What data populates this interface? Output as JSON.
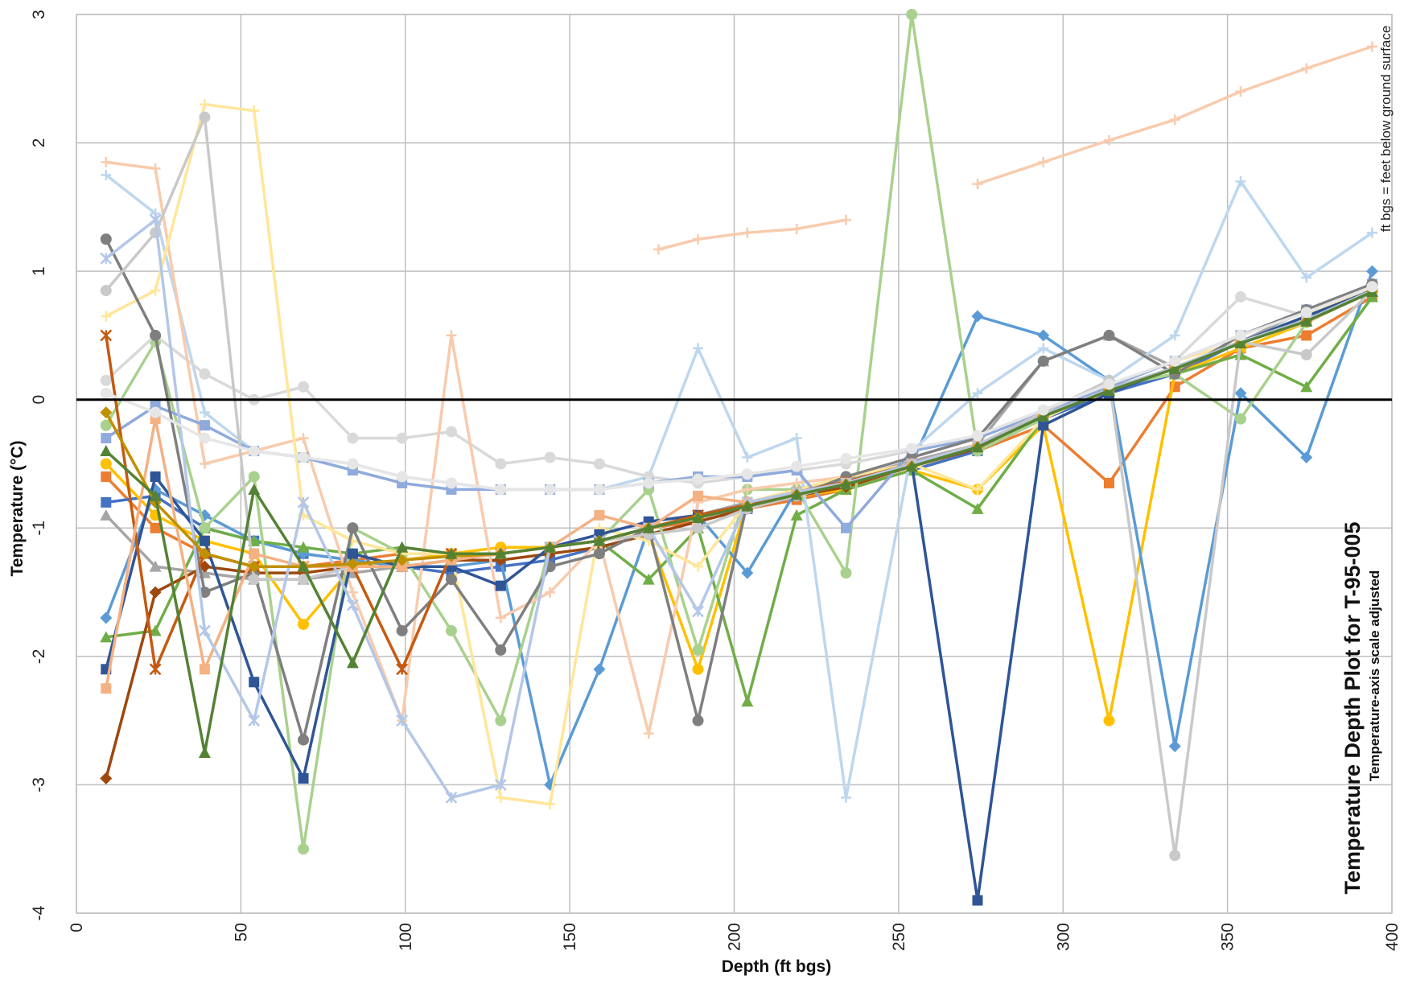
{
  "chart_data": {
    "type": "line",
    "title": "Temperature Depth Plot for T-95-005",
    "subtitle": "Temperature-axis scale adjusted",
    "note": "ft bgs = feet below ground surface",
    "xlabel": "Depth (ft bgs)",
    "ylabel": "Temperature (°C)",
    "xlim": [
      0,
      400
    ],
    "ylim": [
      -4,
      3
    ],
    "xticks": [
      0,
      50,
      100,
      150,
      200,
      250,
      300,
      350,
      400
    ],
    "yticks": [
      -4,
      -3,
      -2,
      -1,
      0,
      1,
      2,
      3
    ],
    "xtick_labels": [
      "0",
      "50",
      "100",
      "150",
      "200",
      "250",
      "300",
      "350",
      "400"
    ],
    "ytick_labels": [
      "-4",
      "-3",
      "-2",
      "-1",
      "0",
      "1",
      "2",
      "3"
    ],
    "grid": true,
    "reference_line_y": 0,
    "depths": [
      9,
      24,
      39,
      54,
      69,
      84,
      99,
      114,
      129,
      144,
      159,
      174,
      189,
      204,
      219,
      234,
      254,
      274,
      294,
      314,
      334,
      354,
      374,
      394
    ],
    "series": [
      {
        "color": "#ED7D31",
        "marker": "square",
        "values": [
          -0.6,
          -1.0,
          -1.2,
          -1.3,
          -1.3,
          -1.25,
          -1.2,
          -1.2,
          -1.2,
          -1.15,
          -1.1,
          -1.0,
          -0.95,
          -0.85,
          -0.78,
          -0.7,
          -0.55,
          -0.4,
          -0.2,
          -0.65,
          0.1,
          0.4,
          0.5,
          0.8
        ]
      },
      {
        "color": "#4472C4",
        "marker": "square",
        "values": [
          -0.8,
          -0.75,
          -1.0,
          -1.1,
          -1.2,
          -1.25,
          -1.3,
          -1.35,
          -1.3,
          -1.25,
          -1.15,
          -1.05,
          -0.95,
          -0.85,
          -0.75,
          -0.7,
          -0.55,
          -0.4,
          -0.15,
          0.05,
          0.2,
          0.45,
          0.65,
          0.85
        ]
      },
      {
        "color": "#A5A5A5",
        "marker": "triangle",
        "values": [
          -0.9,
          -1.3,
          -1.35,
          -1.4,
          -1.4,
          -1.35,
          -1.3,
          -1.25,
          -1.2,
          -1.15,
          -1.1,
          -1.0,
          -0.9,
          -0.8,
          -0.72,
          -0.62,
          -0.48,
          -0.35,
          0.3,
          0.5,
          0.25,
          0.45,
          0.7,
          0.9
        ]
      },
      {
        "color": "#FFC000",
        "marker": "circle",
        "values": [
          -0.5,
          -0.9,
          -1.1,
          -1.2,
          -1.75,
          -1.3,
          -1.25,
          -1.2,
          -1.15,
          -1.15,
          -1.1,
          -1.05,
          -2.1,
          -0.8,
          -0.75,
          -0.7,
          -0.55,
          -0.7,
          -0.2,
          -2.5,
          0.2,
          0.4,
          0.6,
          0.85
        ]
      },
      {
        "color": "#5B9BD5",
        "marker": "diamond",
        "values": [
          -1.7,
          -0.7,
          -0.9,
          -1.1,
          -1.2,
          -1.25,
          -1.3,
          -1.3,
          -1.25,
          -3.0,
          -2.1,
          -1.0,
          -0.9,
          -1.35,
          -0.7,
          -0.6,
          -0.5,
          0.65,
          0.5,
          0.15,
          -2.7,
          0.05,
          -0.45,
          1.0
        ]
      },
      {
        "color": "#70AD47",
        "marker": "triangle",
        "values": [
          -1.85,
          -1.8,
          -1.0,
          -1.1,
          -1.15,
          -1.2,
          -1.15,
          -1.2,
          -1.2,
          -1.15,
          -1.1,
          -1.4,
          -1.0,
          -2.35,
          -0.9,
          -0.7,
          -0.55,
          -0.85,
          -0.15,
          0.1,
          0.2,
          0.35,
          0.1,
          0.8
        ]
      },
      {
        "color": "#9E480E",
        "marker": "diamond",
        "values": [
          -2.95,
          -1.5,
          -1.3,
          -1.35,
          -1.35,
          -1.3,
          -1.3,
          -1.25,
          -1.25,
          -1.2,
          -1.15,
          -1.05,
          -0.95,
          -0.85,
          -0.75,
          -0.68,
          -0.52,
          -0.38,
          -0.12,
          0.08,
          0.25,
          0.45,
          0.62,
          0.85
        ]
      },
      {
        "color": "#A9D18E",
        "marker": "circle",
        "values": [
          -0.2,
          0.45,
          -1.0,
          -0.6,
          -3.5,
          -1.0,
          -1.2,
          -1.8,
          -2.5,
          -1.15,
          -1.1,
          -0.7,
          -1.95,
          -0.7,
          -0.7,
          -1.35,
          3.0,
          -0.4,
          -0.15,
          0.1,
          0.2,
          -0.15,
          0.6,
          0.85
        ]
      },
      {
        "color": "#BDD7EE",
        "marker": "plus",
        "values": [
          1.75,
          1.45,
          -0.1,
          -0.4,
          -0.45,
          -0.5,
          -0.6,
          -0.65,
          -0.7,
          -0.7,
          -0.7,
          -0.6,
          0.4,
          -0.45,
          -0.3,
          -3.1,
          -0.4,
          0.05,
          0.4,
          0.15,
          0.5,
          1.7,
          0.95,
          1.3
        ]
      },
      {
        "color": "#D9D9D9",
        "marker": "circle",
        "values": [
          0.15,
          0.5,
          0.2,
          0.0,
          0.1,
          -0.3,
          -0.3,
          -0.25,
          -0.5,
          -0.45,
          -0.5,
          -0.6,
          -0.65,
          -0.6,
          -0.55,
          -0.5,
          -0.4,
          -0.3,
          -0.1,
          0.1,
          0.3,
          0.8,
          0.65,
          0.9
        ]
      },
      {
        "color": "#F8CBAD",
        "marker": "plus",
        "values": [
          1.85,
          1.8,
          -0.5,
          -0.4,
          -0.3,
          -1.5,
          -2.5,
          0.5,
          -1.7,
          -1.5,
          -1.1,
          -2.6,
          -0.8,
          -0.7,
          -0.65,
          -0.6,
          -0.5,
          -0.35,
          -0.1,
          0.05,
          0.25,
          0.45,
          0.6,
          0.85
        ]
      },
      {
        "color": "#FFE699",
        "marker": "plus",
        "values": [
          0.65,
          0.85,
          2.3,
          2.25,
          -0.9,
          -1.1,
          -1.2,
          -1.2,
          -3.1,
          -3.15,
          -1.0,
          -1.1,
          -1.3,
          -0.8,
          -0.7,
          -0.6,
          -0.5,
          -0.7,
          -0.15,
          0.1,
          0.3,
          0.45,
          0.65,
          0.88
        ]
      },
      {
        "color": "#8FAADC",
        "marker": "square",
        "values": [
          -0.3,
          -0.05,
          -0.2,
          -0.4,
          -0.45,
          -0.55,
          -0.65,
          -0.7,
          -0.7,
          -0.7,
          -0.7,
          -0.65,
          -0.6,
          -0.6,
          -0.55,
          -1.0,
          -0.4,
          -0.3,
          -0.1,
          0.1,
          0.3,
          0.5,
          0.7,
          0.9
        ]
      },
      {
        "color": "#7F7F7F",
        "marker": "circle",
        "values": [
          1.25,
          0.5,
          -1.5,
          -1.35,
          -2.65,
          -1.0,
          -1.8,
          -1.4,
          -1.95,
          -1.3,
          -1.2,
          -1.0,
          -2.5,
          -0.8,
          -0.75,
          -0.6,
          -0.45,
          -0.3,
          0.3,
          0.5,
          0.2,
          0.5,
          0.7,
          0.9
        ]
      },
      {
        "color": "#C9C9C9",
        "marker": "circle",
        "values": [
          0.85,
          1.3,
          2.2,
          -1.4,
          -1.4,
          -1.3,
          -1.3,
          -1.25,
          -1.2,
          -1.15,
          -1.1,
          -1.05,
          -1.0,
          -0.85,
          -0.75,
          -0.65,
          -0.5,
          -0.35,
          -0.1,
          0.15,
          -3.55,
          0.45,
          0.35,
          0.85
        ]
      },
      {
        "color": "#2F5597",
        "marker": "square",
        "values": [
          -2.1,
          -0.6,
          -1.1,
          -2.2,
          -2.95,
          -1.2,
          -1.3,
          -1.3,
          -1.45,
          -1.15,
          -1.05,
          -0.95,
          -0.9,
          -0.82,
          -0.72,
          -0.65,
          -0.5,
          -3.9,
          -0.2,
          0.05,
          0.25,
          0.45,
          0.65,
          0.85
        ]
      },
      {
        "color": "#C55A11",
        "marker": "star",
        "values": [
          0.5,
          -2.1,
          -1.2,
          -1.3,
          -1.3,
          -1.3,
          -2.1,
          -1.2,
          -1.2,
          -1.15,
          -1.1,
          -1.0,
          -0.9,
          -0.82,
          -0.72,
          -0.64,
          -0.5,
          -0.36,
          -0.12,
          0.08,
          0.25,
          0.45,
          0.62,
          0.85
        ]
      },
      {
        "color": "#F4B183",
        "marker": "square",
        "values": [
          -2.25,
          -0.15,
          -2.1,
          -1.2,
          -1.3,
          -1.3,
          -1.3,
          -1.25,
          -1.2,
          -1.15,
          -0.9,
          -1.0,
          -0.75,
          -0.8,
          -0.72,
          -0.65,
          -0.5,
          -0.36,
          -0.12,
          0.08,
          0.25,
          0.45,
          0.62,
          0.85
        ]
      },
      {
        "color": "#B4C7E7",
        "marker": "star",
        "values": [
          1.1,
          1.4,
          -1.8,
          -2.5,
          -0.8,
          -1.6,
          -2.5,
          -3.1,
          -3.0,
          -1.15,
          -1.1,
          -1.0,
          -1.65,
          -0.8,
          -0.72,
          -0.65,
          -0.5,
          -0.36,
          -0.12,
          0.08,
          0.25,
          0.45,
          0.62,
          0.85
        ]
      },
      {
        "color": "#BF9000",
        "marker": "diamond",
        "values": [
          -0.1,
          -0.8,
          -1.2,
          -1.3,
          -1.3,
          -1.28,
          -1.25,
          -1.22,
          -1.2,
          -1.15,
          -1.1,
          -1.0,
          -0.92,
          -0.83,
          -0.74,
          -0.66,
          -0.52,
          -0.37,
          -0.13,
          0.07,
          0.24,
          0.44,
          0.61,
          0.84
        ]
      },
      {
        "color": "#548235",
        "marker": "triangle",
        "values": [
          -0.4,
          -0.75,
          -2.75,
          -0.7,
          -1.3,
          -2.05,
          -1.15,
          -1.2,
          -1.2,
          -1.15,
          -1.1,
          -1.0,
          -0.92,
          -0.83,
          -0.74,
          -0.66,
          -0.52,
          -0.37,
          -0.13,
          0.07,
          0.24,
          0.44,
          0.61,
          0.84
        ]
      },
      {
        "color": "#E7E6E6",
        "marker": "circle",
        "values": [
          0.05,
          -0.1,
          -0.3,
          -0.4,
          -0.45,
          -0.5,
          -0.6,
          -0.65,
          -0.7,
          -0.7,
          -0.7,
          -0.65,
          -0.62,
          -0.58,
          -0.52,
          -0.46,
          -0.38,
          -0.28,
          -0.08,
          0.12,
          0.3,
          0.5,
          0.68,
          0.88
        ]
      }
    ],
    "partial_series": [
      {
        "color": "#F8CBAD",
        "points": [
          [
            177,
            1.17
          ],
          [
            189,
            1.25
          ],
          [
            204,
            1.3
          ],
          [
            219,
            1.33
          ],
          [
            234,
            1.4
          ]
        ]
      },
      {
        "color": "#F8CBAD",
        "points": [
          [
            274,
            1.68
          ],
          [
            294,
            1.85
          ],
          [
            314,
            2.02
          ],
          [
            334,
            2.18
          ],
          [
            354,
            2.4
          ],
          [
            374,
            2.58
          ],
          [
            394,
            2.75
          ]
        ]
      }
    ]
  }
}
